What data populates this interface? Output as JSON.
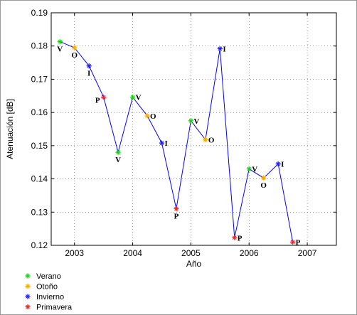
{
  "chart_data": {
    "type": "line",
    "xlabel": "Año",
    "ylabel": "Atenuación [dB]",
    "xlim": [
      2002.6,
      2007.5
    ],
    "ylim": [
      0.12,
      0.19
    ],
    "grid": true,
    "legend_position": "bottom-left",
    "x_ticks": [
      2003,
      2004,
      2005,
      2006,
      2007
    ],
    "y_ticks": [
      0.12,
      0.13,
      0.14,
      0.15,
      0.16,
      0.17,
      0.18,
      0.19
    ],
    "x_tick_labels": [
      "2003",
      "2004",
      "2005",
      "2006",
      "2007"
    ],
    "y_tick_labels": [
      "0.12",
      "0.13",
      "0.14",
      "0.15",
      "0.16",
      "0.17",
      "0.18",
      "0.19"
    ],
    "line_color": "#0000ff",
    "seasons": [
      {
        "code": "V",
        "name": "Verano",
        "color": "#22cc22"
      },
      {
        "code": "O",
        "name": "Otoño",
        "color": "#ffaa00"
      },
      {
        "code": "I",
        "name": "Invierno",
        "color": "#2222ff"
      },
      {
        "code": "P",
        "name": "Primavera",
        "color": "#ff2222"
      }
    ],
    "points": [
      {
        "x": 2002.75,
        "y": 0.1813,
        "season": "V",
        "label_pos": "below"
      },
      {
        "x": 2003.0,
        "y": 0.1795,
        "season": "O",
        "label_pos": "below"
      },
      {
        "x": 2003.25,
        "y": 0.174,
        "season": "I",
        "label_pos": "below"
      },
      {
        "x": 2003.5,
        "y": 0.1646,
        "season": "P",
        "label_pos": "left"
      },
      {
        "x": 2003.75,
        "y": 0.148,
        "season": "V",
        "label_pos": "below"
      },
      {
        "x": 2004.0,
        "y": 0.1646,
        "season": "V",
        "label_pos": "right"
      },
      {
        "x": 2004.25,
        "y": 0.159,
        "season": "O",
        "label_pos": "right"
      },
      {
        "x": 2004.5,
        "y": 0.1508,
        "season": "I",
        "label_pos": "right"
      },
      {
        "x": 2004.75,
        "y": 0.131,
        "season": "P",
        "label_pos": "below"
      },
      {
        "x": 2005.0,
        "y": 0.1575,
        "season": "V",
        "label_pos": "right"
      },
      {
        "x": 2005.25,
        "y": 0.1518,
        "season": "O",
        "label_pos": "right"
      },
      {
        "x": 2005.5,
        "y": 0.1792,
        "season": "I",
        "label_pos": "right"
      },
      {
        "x": 2005.75,
        "y": 0.1223,
        "season": "P",
        "label_pos": "right"
      },
      {
        "x": 2006.0,
        "y": 0.143,
        "season": "V",
        "label_pos": "right"
      },
      {
        "x": 2006.25,
        "y": 0.1403,
        "season": "O",
        "label_pos": "below"
      },
      {
        "x": 2006.5,
        "y": 0.1445,
        "season": "I",
        "label_pos": "right"
      },
      {
        "x": 2006.75,
        "y": 0.121,
        "season": "P",
        "label_pos": "right"
      }
    ]
  }
}
